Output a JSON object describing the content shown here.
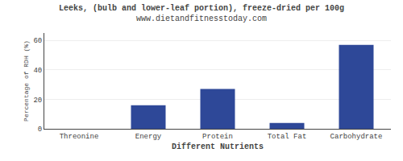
{
  "chart_data": {
    "type": "bar",
    "title": "Leeks, (bulb and lower-leaf portion), freeze-dried per 100g",
    "subtitle": "www.dietandfitnesstoday.com",
    "xlabel": "Different Nutrients",
    "ylabel": "Percentage of RDH (%)",
    "categories": [
      "Threonine",
      "Energy",
      "Protein",
      "Total Fat",
      "Carbohydrate"
    ],
    "values": [
      0,
      16,
      27,
      4,
      57
    ],
    "color": "#2e4898",
    "ylim": [
      0,
      65
    ],
    "yticks": [
      0,
      20,
      40,
      60
    ],
    "grid": true
  }
}
